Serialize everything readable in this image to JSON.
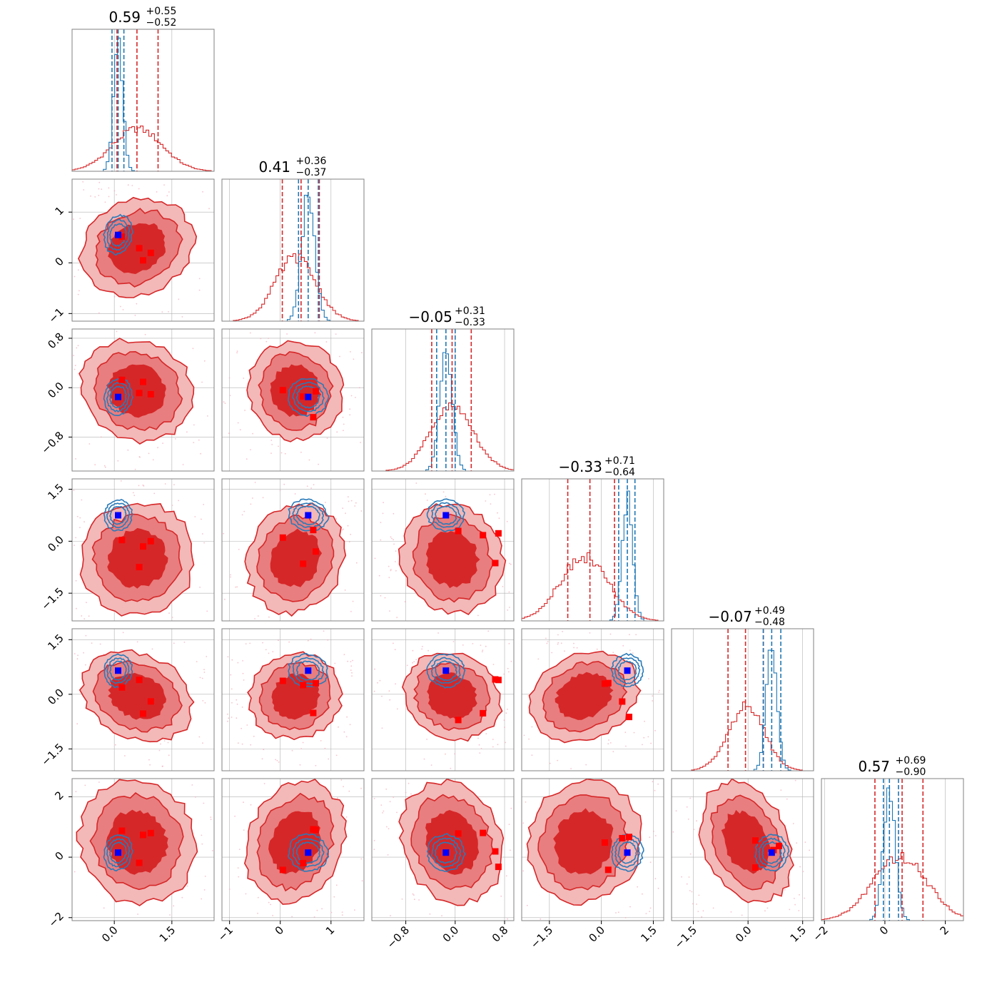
{
  "chart_data": {
    "type": "corner",
    "n_params": 6,
    "colors": {
      "red": "#d62728",
      "red_mid": "#e87e7f",
      "red_light": "#f3b8b8",
      "blue": "#1f77b4",
      "blue_contour": "#2a7ab9",
      "marker_red": "#ff0000",
      "marker_blue": "#0000ff",
      "grid": "#b0b0b0"
    },
    "titles": [
      {
        "median": "0.59",
        "plus": "+0.55",
        "minus": "−0.52"
      },
      {
        "median": "0.41",
        "plus": "+0.36",
        "minus": "−0.37"
      },
      {
        "median": "−0.05",
        "plus": "+0.31",
        "minus": "−0.33"
      },
      {
        "median": "−0.33",
        "plus": "+0.71",
        "minus": "−0.64"
      },
      {
        "median": "−0.07",
        "plus": "+0.49",
        "minus": "−0.48"
      },
      {
        "median": "0.57",
        "plus": "+0.69",
        "minus": "−0.90"
      }
    ],
    "params": [
      {
        "range": [
          -1.1,
          2.6
        ],
        "ticks": [
          0.0,
          1.5
        ],
        "tick_labels": [
          "0.0",
          "1.5"
        ],
        "red": {
          "mean": 0.6,
          "sd": 0.65
        },
        "blue": {
          "mean": 0.1,
          "sd": 0.12
        },
        "red_q": [
          0.07,
          0.59,
          1.14
        ],
        "blue_q": [
          -0.06,
          0.1,
          0.25
        ]
      },
      {
        "range": [
          -1.15,
          1.65
        ],
        "ticks": [
          -1,
          0,
          1
        ],
        "tick_labels": [
          "−1",
          "0",
          "1"
        ],
        "red": {
          "mean": 0.3,
          "sd": 0.4
        },
        "blue": {
          "mean": 0.55,
          "sd": 0.13
        },
        "red_q": [
          0.04,
          0.41,
          0.77
        ],
        "blue_q": [
          0.36,
          0.55,
          0.75
        ]
      },
      {
        "range": [
          -1.35,
          0.95
        ],
        "ticks": [
          -0.8,
          0.0,
          0.8
        ],
        "tick_labels": [
          "−0.8",
          "0.0",
          "0.8"
        ],
        "red": {
          "mean": -0.05,
          "sd": 0.35
        },
        "blue": {
          "mean": -0.15,
          "sd": 0.1
        },
        "red_q": [
          -0.38,
          -0.05,
          0.26
        ],
        "blue_q": [
          -0.3,
          -0.15,
          0.0
        ]
      },
      {
        "range": [
          -2.3,
          1.8
        ],
        "ticks": [
          -1.5,
          0.0,
          1.5
        ],
        "tick_labels": [
          "−1.5",
          "0.0",
          "1.5"
        ],
        "red": {
          "mean": -0.5,
          "sd": 0.7
        },
        "blue": {
          "mean": 0.75,
          "sd": 0.15
        },
        "red_q": [
          -0.97,
          -0.33,
          0.38
        ],
        "blue_q": [
          0.5,
          0.75,
          0.97
        ]
      },
      {
        "range": [
          -2.1,
          1.8
        ],
        "ticks": [
          -1.5,
          0.0,
          1.5
        ],
        "tick_labels": [
          "−1.5",
          "0.0",
          "1.5"
        ],
        "red": {
          "mean": -0.05,
          "sd": 0.5
        },
        "blue": {
          "mean": 0.65,
          "sd": 0.15
        },
        "red_q": [
          -0.55,
          -0.07,
          0.42
        ],
        "blue_q": [
          0.42,
          0.65,
          0.9
        ]
      },
      {
        "range": [
          -2.1,
          2.6
        ],
        "ticks": [
          -2,
          0,
          2
        ],
        "tick_labels": [
          "−2",
          "0",
          "2"
        ],
        "red": {
          "mean": 0.5,
          "sd": 0.9
        },
        "blue": {
          "mean": 0.15,
          "sd": 0.2
        },
        "red_q": [
          -0.33,
          0.57,
          1.26
        ],
        "blue_q": [
          -0.05,
          0.15,
          0.45
        ]
      }
    ],
    "y_axis_ticks": [
      null,
      {
        "ticks": [
          -1,
          0,
          1
        ],
        "tick_labels": [
          "−1",
          "0",
          "1"
        ]
      },
      {
        "ticks": [
          -0.8,
          0.0,
          0.8
        ],
        "tick_labels": [
          "−0.8",
          "0.0",
          "0.8"
        ]
      },
      {
        "ticks": [
          -1.5,
          0.0,
          1.5
        ],
        "tick_labels": [
          "−1.5",
          "0.0",
          "1.5"
        ]
      },
      {
        "ticks": [
          -1.5,
          0.0,
          1.5
        ],
        "tick_labels": [
          "−1.5",
          "0.0",
          "1.5"
        ]
      },
      {
        "ticks": [
          -2,
          0,
          2
        ],
        "tick_labels": [
          "−2",
          "0",
          "2"
        ]
      }
    ],
    "blue_markers": [
      0.1,
      0.55,
      -0.15,
      0.75,
      0.65,
      0.15
    ],
    "red_markers": [
      {
        "x": [
          0.2,
          0.75,
          0.95,
          0.65
        ],
        "y": [
          0.1,
          0.45,
          0.7,
          0.4
        ]
      },
      {
        "x": [
          0.05,
          0.45,
          0.7,
          0.65
        ],
        "y": [
          -0.25,
          0.05,
          0.2,
          -0.1
        ]
      },
      {
        "x": [
          0.05,
          0.45,
          0.7,
          0.65
        ],
        "y": [
          -0.8,
          -0.05,
          0.3,
          -0.6
        ]
      },
      {
        "x": [
          0.1,
          0.2,
          0.8,
          0.6
        ],
        "y": [
          -0.4,
          0.2,
          0.2,
          -0.35
        ]
      },
      {
        "x": [
          0.2,
          0.2,
          0.85,
          0.7
        ],
        "y": [
          1.1,
          0.9,
          0.1,
          -0.2
        ]
      }
    ],
    "grid": true
  }
}
